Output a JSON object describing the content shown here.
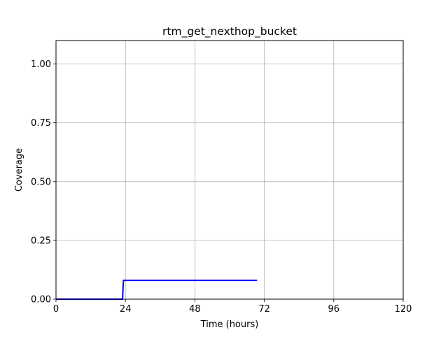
{
  "chart_data": {
    "type": "line",
    "title": "rtm_get_nexthop_bucket",
    "xlabel": "Time (hours)",
    "ylabel": "Coverage",
    "xlim": [
      0,
      120
    ],
    "ylim": [
      0,
      1.1
    ],
    "xticks": [
      0,
      24,
      48,
      72,
      96,
      120
    ],
    "xtick_labels": [
      "0",
      "24",
      "48",
      "72",
      "96",
      "120"
    ],
    "yticks": [
      0,
      0.25,
      0.5,
      0.75,
      1.0
    ],
    "ytick_labels": [
      "0.00",
      "0.25",
      "0.50",
      "0.75",
      "1.00"
    ],
    "grid": true,
    "series": [
      {
        "color": "#0000ff",
        "x": [
          0,
          23,
          23.3,
          69.5
        ],
        "y": [
          0,
          0,
          0.08,
          0.08
        ]
      }
    ]
  }
}
